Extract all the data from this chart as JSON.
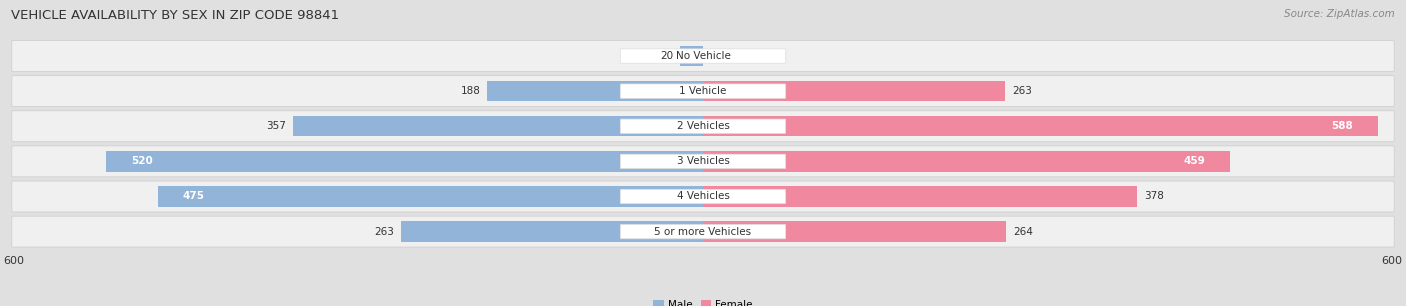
{
  "title": "VEHICLE AVAILABILITY BY SEX IN ZIP CODE 98841",
  "source": "Source: ZipAtlas.com",
  "categories": [
    "No Vehicle",
    "1 Vehicle",
    "2 Vehicles",
    "3 Vehicles",
    "4 Vehicles",
    "5 or more Vehicles"
  ],
  "male_values": [
    20,
    188,
    357,
    520,
    475,
    263
  ],
  "female_values": [
    0,
    263,
    588,
    459,
    378,
    264
  ],
  "male_color": "#92b4d8",
  "female_color": "#f088a0",
  "background_color": "#e0e0e0",
  "row_color": "#f0f0f0",
  "axis_limit": 600,
  "legend_male": "Male",
  "legend_female": "Female",
  "title_fontsize": 9.5,
  "source_fontsize": 7.5,
  "value_fontsize": 7.5,
  "cat_fontsize": 7.5,
  "tick_fontsize": 8
}
